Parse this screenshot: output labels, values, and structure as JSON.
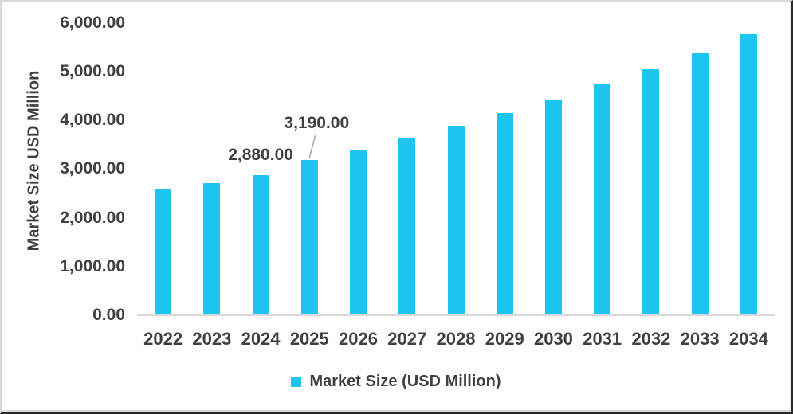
{
  "chart_data": {
    "type": "bar",
    "categories": [
      "2022",
      "2023",
      "2024",
      "2025",
      "2026",
      "2027",
      "2028",
      "2029",
      "2030",
      "2031",
      "2032",
      "2033",
      "2034"
    ],
    "values": [
      2580,
      2710,
      2880,
      3190,
      3405,
      3640,
      3885,
      4150,
      4435,
      4735,
      5055,
      5400,
      5765
    ],
    "series": [
      {
        "name": "Market Size (USD Million)",
        "values": [
          2580,
          2710,
          2880,
          3190,
          3405,
          3640,
          3885,
          4150,
          4435,
          4735,
          5055,
          5400,
          5765
        ]
      }
    ],
    "title": "",
    "xlabel": "",
    "ylabel": "Market Size USD Million",
    "ylim": [
      0,
      6000
    ],
    "ytick_step": 1000,
    "ytick_labels": [
      "0.00",
      "1,000.00",
      "2,000.00",
      "3,000.00",
      "4,000.00",
      "5,000.00",
      "6,000.00"
    ],
    "grid": false,
    "legend_position": "bottom",
    "bar_color": "#1EC4F0",
    "annotations": [
      {
        "category": "2024",
        "text": "2,880.00",
        "leader": false
      },
      {
        "category": "2025",
        "text": "3,190.00",
        "leader": true
      }
    ]
  },
  "y_axis": {
    "title": "Market Size USD Million"
  },
  "legend": {
    "label": "Market Size (USD Million)"
  },
  "colors": {
    "bar": "#1EC4F0",
    "text": "#404040",
    "axis_line": "#d9d9d9",
    "leader_line": "#a6a6a6"
  }
}
